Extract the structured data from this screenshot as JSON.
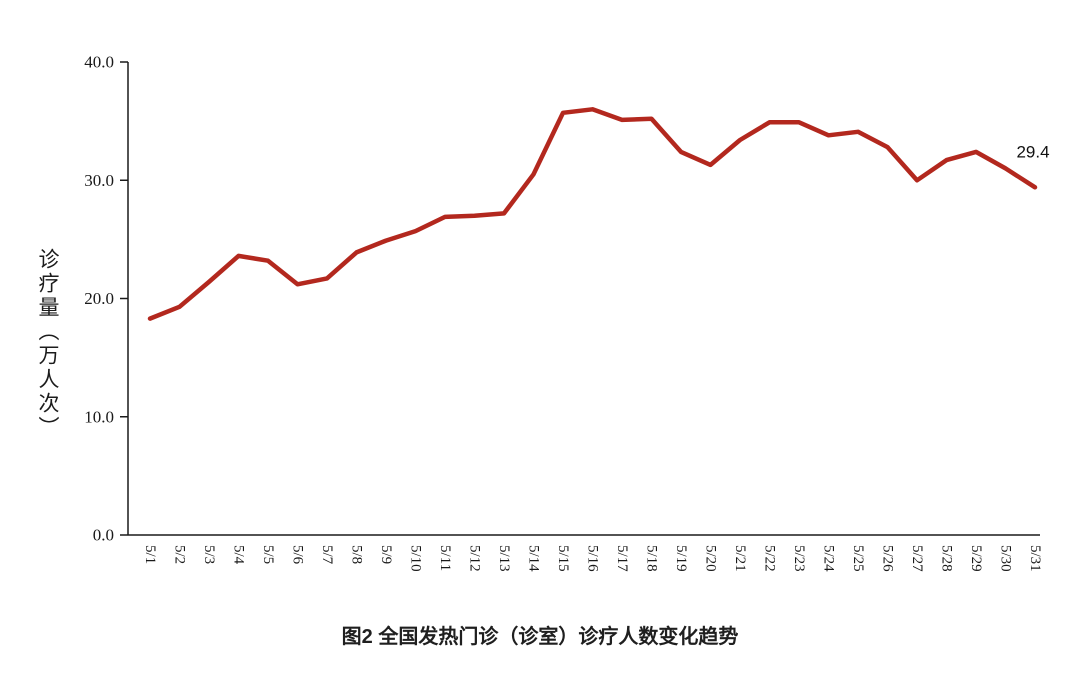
{
  "chart_data": {
    "type": "line",
    "title": "图2 全国发热门诊（诊室）诊疗人数变化趋势",
    "ylabel": "诊疗量（万人次）",
    "xlabel": "",
    "ylim": [
      0,
      40
    ],
    "yticks": [
      0,
      10,
      20,
      30,
      40
    ],
    "ytick_labels": [
      "0.0",
      "10.0",
      "20.0",
      "30.0",
      "40.0"
    ],
    "categories": [
      "5/1",
      "5/2",
      "5/3",
      "5/4",
      "5/5",
      "5/6",
      "5/7",
      "5/8",
      "5/9",
      "5/10",
      "5/11",
      "5/12",
      "5/13",
      "5/14",
      "5/15",
      "5/16",
      "5/17",
      "5/18",
      "5/19",
      "5/20",
      "5/21",
      "5/22",
      "5/23",
      "5/24",
      "5/25",
      "5/26",
      "5/27",
      "5/28",
      "5/29",
      "5/30",
      "5/31"
    ],
    "values": [
      18.3,
      19.3,
      21.4,
      23.6,
      23.2,
      21.2,
      21.7,
      23.9,
      24.9,
      25.7,
      26.9,
      27.0,
      27.2,
      30.5,
      35.7,
      36.0,
      35.1,
      35.2,
      32.4,
      31.3,
      33.4,
      34.9,
      34.9,
      33.8,
      34.1,
      32.8,
      30.0,
      31.7,
      32.4,
      31.0,
      29.4
    ],
    "annotation_label": "29.4",
    "line_color": "#b3281e",
    "grid": false,
    "legend": "none"
  },
  "colors": {
    "line": "#b3281e",
    "axis": "#1a1a1a",
    "text": "#1a1a1a",
    "background": "#ffffff"
  }
}
